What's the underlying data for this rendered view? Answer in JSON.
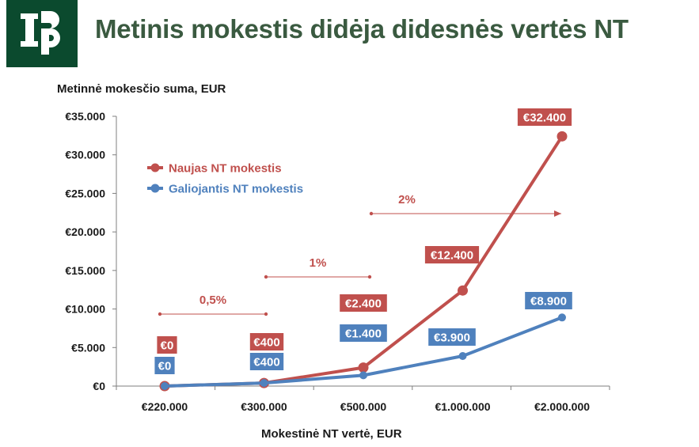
{
  "header": {
    "title": "Metinis mokestis didėja didesnės vertės NT",
    "logo_color": "#0b4a2e"
  },
  "chart_data": {
    "type": "line",
    "title": "Metinis mokestis didėja didesnės vertės NT",
    "ylabel": "Metinnė mokesčio suma, EUR",
    "xlabel": "Mokestinė NT vertė, EUR",
    "categories": [
      "€220.000",
      "€300.000",
      "€500.000",
      "€1.000.000",
      "€2.000.000"
    ],
    "ylim": [
      0,
      35000
    ],
    "yticks": [
      {
        "value": 0,
        "label": "€0"
      },
      {
        "value": 5000,
        "label": "€5.000"
      },
      {
        "value": 10000,
        "label": "€10.000"
      },
      {
        "value": 15000,
        "label": "€15.000"
      },
      {
        "value": 20000,
        "label": "€20.000"
      },
      {
        "value": 25000,
        "label": "€25.000"
      },
      {
        "value": 30000,
        "label": "€30.000"
      },
      {
        "value": 35000,
        "label": "€35.000"
      }
    ],
    "grid": false,
    "legend_position": "top-left",
    "series": [
      {
        "name": "Naujas NT mokestis",
        "color": "#c0504d",
        "values": [
          0,
          400,
          2400,
          12400,
          32400
        ],
        "labels": [
          "€0",
          "€400",
          "€2.400",
          "€12.400",
          "€32.400"
        ]
      },
      {
        "name": "Galiojantis NT mokestis",
        "color": "#4f81bd",
        "values": [
          0,
          400,
          1400,
          3900,
          8900
        ],
        "labels": [
          "€0",
          "€400",
          "€1.400",
          "€3.900",
          "€8.900"
        ]
      }
    ],
    "rate_annotations": [
      {
        "label": "0,5%",
        "from": 0,
        "to": 1,
        "arrow": false
      },
      {
        "label": "1%",
        "from": 1,
        "to": 2,
        "arrow": false
      },
      {
        "label": "2%",
        "from": 2,
        "to": 4,
        "arrow": true
      }
    ],
    "annotation_color": "#c0504d"
  }
}
